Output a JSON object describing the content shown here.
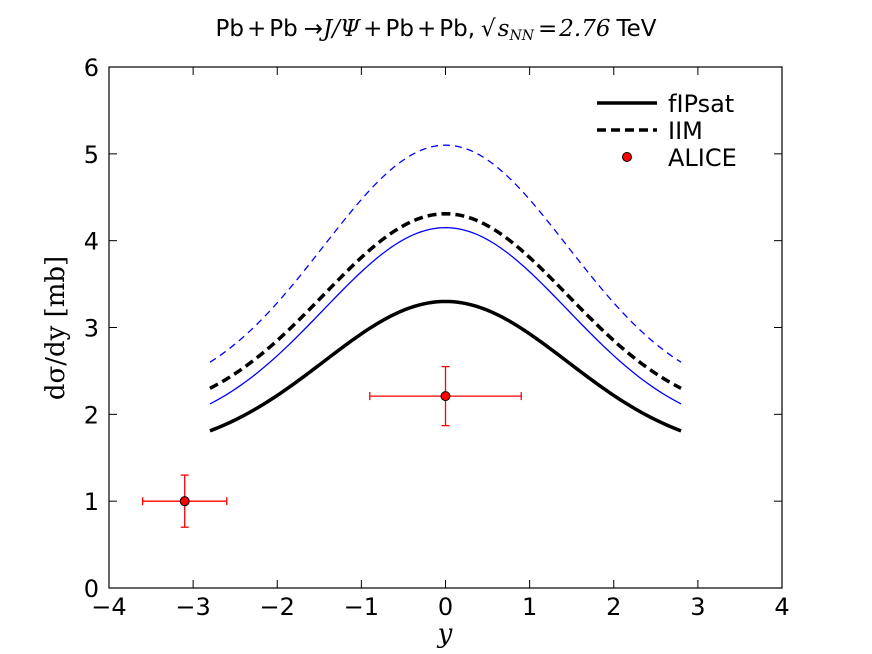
{
  "chart_data": {
    "type": "line",
    "title": {
      "left": "Pb",
      "op1": "+",
      "mid1": "Pb",
      "arrow": "→",
      "jpsi": "J/Ψ",
      "op2": "+",
      "mid2": "Pb",
      "op3": "+",
      "mid3": "Pb,",
      "sqrt_label": "s",
      "sqrt_sub": "NN",
      "equals": "=",
      "energy": "2.76",
      "unit": "TeV"
    },
    "xlabel": "y",
    "ylabel": "dσ/dy [mb]",
    "xlim": [
      -4,
      4
    ],
    "ylim": [
      0,
      6
    ],
    "xticks": [
      -4,
      -3,
      -2,
      -1,
      0,
      1,
      2,
      3,
      4
    ],
    "yticks": [
      0,
      1,
      2,
      3,
      4,
      5,
      6
    ],
    "xtick_labels": [
      "−4",
      "−3",
      "−2",
      "−1",
      "0",
      "1",
      "2",
      "3",
      "4"
    ],
    "ytick_labels": [
      "0",
      "1",
      "2",
      "3",
      "4",
      "5",
      "6"
    ],
    "legend": {
      "position": "top-right",
      "entries": [
        "fIPsat",
        "IIM",
        "ALICE"
      ]
    },
    "colors": {
      "black": "#000000",
      "blue": "#0000ff",
      "red": "#ff0000",
      "red_dark": "#aa0000"
    },
    "series": [
      {
        "name": "fIPsat",
        "color": "#000000",
        "style": "solid",
        "width": 3.5,
        "x_range": [
          -2.8,
          2.8
        ],
        "peak": 3.3,
        "edge": 1.81
      },
      {
        "name": "IIM",
        "color": "#000000",
        "style": "dashed",
        "width": 3.5,
        "x_range": [
          -2.8,
          2.8
        ],
        "peak": 4.31,
        "edge": 2.3
      },
      {
        "name": "blue-solid",
        "color": "#0000ff",
        "style": "solid",
        "width": 1.3,
        "x_range": [
          -2.8,
          2.8
        ],
        "peak": 4.15,
        "edge": 2.12
      },
      {
        "name": "blue-dashed",
        "color": "#0000ff",
        "style": "dashed",
        "width": 1.3,
        "x_range": [
          -2.8,
          2.8
        ],
        "peak": 5.1,
        "edge": 2.6
      }
    ],
    "points": {
      "name": "ALICE",
      "x": [
        -3.1,
        0.0
      ],
      "y": [
        1.0,
        2.21
      ],
      "xerr": [
        0.5,
        0.9
      ],
      "yerr": [
        0.3,
        0.34
      ]
    }
  }
}
